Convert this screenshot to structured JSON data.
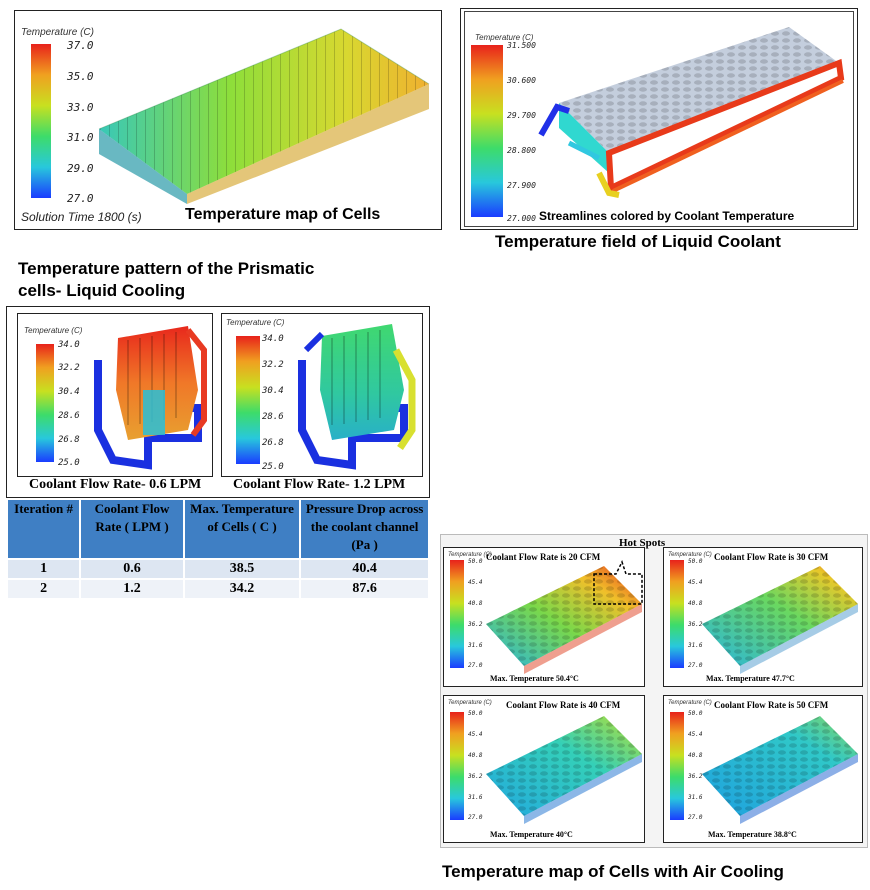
{
  "panel_cells": {
    "scale_title": "Temperature (C)",
    "ticks": [
      "37.0",
      "35.0",
      "33.0",
      "31.0",
      "29.0",
      "27.0"
    ],
    "solution_time": "Solution Time 1800 (s)",
    "caption": "Temperature map of Cells"
  },
  "panel_coolant": {
    "scale_title": "Temperature (C)",
    "ticks": [
      "31.500",
      "30.600",
      "29.700",
      "28.800",
      "27.900",
      "27.000"
    ],
    "caption": "Streamlines colored by Coolant Temperature",
    "title": "Temperature field of Liquid Coolant"
  },
  "prismatic": {
    "title_line1": "Temperature pattern of the Prismatic",
    "title_line2": "cells- Liquid Cooling",
    "left": {
      "scale_title": "Temperature (C)",
      "ticks": [
        "34.0",
        "32.2",
        "30.4",
        "28.6",
        "26.8",
        "25.0"
      ],
      "caption": "Coolant Flow Rate- 0.6 LPM"
    },
    "right": {
      "scale_title": "Temperature (C)",
      "ticks": [
        "34.0",
        "32.2",
        "30.4",
        "28.6",
        "26.8",
        "25.0"
      ],
      "caption": "Coolant Flow Rate- 1.2 LPM"
    }
  },
  "table": {
    "headers": [
      "Iteration #",
      "Coolant Flow Rate ( LPM )",
      "Max. Temperature of Cells ( C )",
      "Pressure Drop across the coolant channel (Pa )"
    ],
    "rows": [
      [
        "1",
        "0.6",
        "38.5",
        "40.4"
      ],
      [
        "2",
        "1.2",
        "34.2",
        "87.6"
      ]
    ]
  },
  "air": {
    "hot_spots": "Hot Spots",
    "title": "Temperature map of Cells with Air Cooling",
    "scale_title": "Temperature (C)",
    "ticks": [
      "50.0",
      "45.4",
      "40.8",
      "36.2",
      "31.6",
      "27.0"
    ],
    "panels": [
      {
        "heading": "Coolant Flow Rate is 20 CFM",
        "max": "Max. Temperature  50.4°C"
      },
      {
        "heading": "Coolant Flow Rate is 30 CFM",
        "max": "Max. Temperature  47.7°C"
      },
      {
        "heading": "Coolant Flow Rate is 40 CFM",
        "max": "Max. Temperature  40°C"
      },
      {
        "heading": "Coolant Flow Rate is 50 CFM",
        "max": "Max. Temperature  38.8°C"
      }
    ]
  },
  "colors": {
    "scale_top": "#e8221b",
    "scale_upper": "#f0a020",
    "scale_mid": "#c8e020",
    "scale_lower_mid": "#3ddc6a",
    "scale_low": "#28c8dc",
    "scale_bottom": "#1a3cff",
    "cell_gray": "#c4cedd",
    "table_header": "#3f7fc4"
  }
}
